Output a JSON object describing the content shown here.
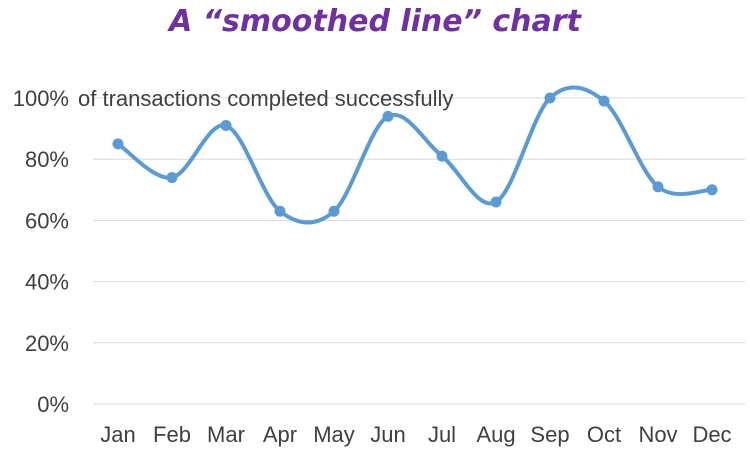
{
  "chart_data": {
    "type": "line",
    "title": "A “smoothed line” chart",
    "categories": [
      "Jan",
      "Feb",
      "Mar",
      "Apr",
      "May",
      "Jun",
      "Jul",
      "Aug",
      "Sep",
      "Oct",
      "Nov",
      "Dec"
    ],
    "series": [
      {
        "values": [
          0.85,
          0.74,
          0.91,
          0.63,
          0.63,
          0.94,
          0.81,
          0.66,
          1.0,
          0.99,
          0.71,
          0.7
        ]
      }
    ],
    "y_ticks": [
      "0%",
      "20%",
      "40%",
      "60%",
      "80%",
      "100%"
    ],
    "ylim": [
      0,
      1
    ],
    "smoothed": true,
    "markers": true,
    "grid": true,
    "annotation": "of transactions completed successfully",
    "colors": {
      "line": "#5B9BD5",
      "title": "#7030A0",
      "grid": "#D9D9D9",
      "text": "#404040"
    }
  }
}
